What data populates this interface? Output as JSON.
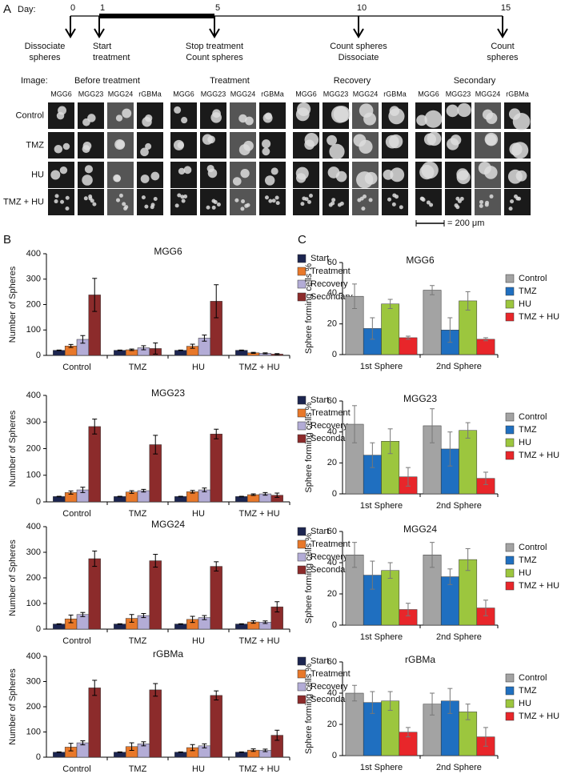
{
  "panel_a": {
    "label": "A",
    "timeline": {
      "day_label": "Day:",
      "days": [
        0,
        1,
        5,
        10,
        15
      ],
      "events": [
        [
          "Dissociate",
          "spheres"
        ],
        [
          "Start",
          "treatment"
        ],
        [
          "Stop treatment",
          "Count spheres"
        ],
        [
          "Count spheres",
          "Dissociate"
        ],
        [
          "Count",
          "spheres"
        ]
      ]
    },
    "image_grid": {
      "label": "Image:",
      "groups": [
        {
          "name": "Before treatment",
          "columns": [
            "MGG6",
            "MGG23",
            "MGG24",
            "rGBMa"
          ]
        },
        {
          "name": "Treatment",
          "columns": [
            "MGG6",
            "MGG23",
            "MGG24",
            "rGBMa"
          ]
        },
        {
          "name": "Recovery",
          "columns": [
            "MGG6",
            "MGG23",
            "MGG24",
            "rGBMa"
          ]
        },
        {
          "name": "Secondary",
          "columns": [
            "MGG6",
            "MGG23",
            "MGG24",
            "rGBMa"
          ]
        }
      ],
      "rows": [
        "Control",
        "TMZ",
        "HU",
        "TMZ + HU"
      ],
      "scale_bar": "= 200 μm"
    }
  },
  "panel_b": {
    "label": "B"
  },
  "panel_c": {
    "label": "C"
  },
  "chart_data": [
    {
      "type": "bar",
      "title": "MGG6",
      "y_label": "Number of Spheres",
      "categories": [
        "Control",
        "TMZ",
        "HU",
        "TMZ + HU"
      ],
      "ylim": [
        0,
        400
      ],
      "yticks": [
        0,
        100,
        200,
        300,
        400
      ],
      "legend": "right",
      "series": [
        {
          "name": "Start",
          "color": "#1c2550",
          "values": [
            20,
            20,
            20,
            20
          ],
          "errors": [
            1,
            1,
            1,
            1
          ]
        },
        {
          "name": "Treatment",
          "color": "#e8782a",
          "values": [
            37,
            22,
            36,
            10
          ],
          "errors": [
            6,
            3,
            8,
            2
          ]
        },
        {
          "name": "Recovery",
          "color": "#b3acd6",
          "values": [
            63,
            30,
            68,
            8
          ],
          "errors": [
            15,
            8,
            12,
            2
          ]
        },
        {
          "name": "Secondary",
          "color": "#8c2b2b",
          "values": [
            238,
            27,
            213,
            5
          ],
          "errors": [
            65,
            22,
            65,
            2
          ]
        }
      ]
    },
    {
      "type": "bar",
      "title": "MGG23",
      "y_label": "Number of Spheres",
      "categories": [
        "Control",
        "TMZ",
        "HU",
        "TMZ + HU"
      ],
      "ylim": [
        0,
        400
      ],
      "yticks": [
        0,
        100,
        200,
        300,
        400
      ],
      "legend": "right",
      "series": [
        {
          "name": "Start",
          "color": "#1c2550",
          "values": [
            20,
            20,
            20,
            20
          ],
          "errors": [
            1,
            1,
            1,
            1
          ]
        },
        {
          "name": "Treatment",
          "color": "#e8782a",
          "values": [
            35,
            37,
            38,
            27
          ],
          "errors": [
            6,
            5,
            5,
            3
          ]
        },
        {
          "name": "Recovery",
          "color": "#b3acd6",
          "values": [
            45,
            42,
            45,
            30
          ],
          "errors": [
            10,
            5,
            7,
            5
          ]
        },
        {
          "name": "Secondary",
          "color": "#8c2b2b",
          "values": [
            283,
            215,
            255,
            25
          ],
          "errors": [
            28,
            35,
            18,
            8
          ]
        }
      ]
    },
    {
      "type": "bar",
      "title": "MGG24",
      "y_label": "Number of Spheres",
      "categories": [
        "Control",
        "TMZ",
        "HU",
        "TMZ + HU"
      ],
      "ylim": [
        0,
        400
      ],
      "yticks": [
        0,
        100,
        200,
        300,
        400
      ],
      "legend": "right",
      "series": [
        {
          "name": "Start",
          "color": "#1c2550",
          "values": [
            20,
            20,
            20,
            20
          ],
          "errors": [
            1,
            1,
            1,
            1
          ]
        },
        {
          "name": "Treatment",
          "color": "#e8782a",
          "values": [
            40,
            42,
            38,
            28
          ],
          "errors": [
            15,
            15,
            12,
            5
          ]
        },
        {
          "name": "Recovery",
          "color": "#b3acd6",
          "values": [
            57,
            53,
            45,
            27
          ],
          "errors": [
            8,
            8,
            8,
            5
          ]
        },
        {
          "name": "Secondary",
          "color": "#8c2b2b",
          "values": [
            275,
            267,
            245,
            87
          ],
          "errors": [
            30,
            25,
            18,
            20
          ]
        }
      ]
    },
    {
      "type": "bar",
      "title": "rGBMa",
      "y_label": "Number of Spheres",
      "categories": [
        "Control",
        "TMZ",
        "HU",
        "TMZ + HU"
      ],
      "ylim": [
        0,
        400
      ],
      "yticks": [
        0,
        100,
        200,
        300,
        400
      ],
      "legend": "right",
      "series": [
        {
          "name": "Start",
          "color": "#1c2550",
          "values": [
            20,
            20,
            20,
            20
          ],
          "errors": [
            1,
            1,
            1,
            1
          ]
        },
        {
          "name": "Treatment",
          "color": "#e8782a",
          "values": [
            40,
            42,
            38,
            28
          ],
          "errors": [
            15,
            15,
            12,
            5
          ]
        },
        {
          "name": "Recovery",
          "color": "#b3acd6",
          "values": [
            57,
            53,
            45,
            27
          ],
          "errors": [
            8,
            8,
            8,
            5
          ]
        },
        {
          "name": "Secondary",
          "color": "#8c2b2b",
          "values": [
            275,
            267,
            245,
            87
          ],
          "errors": [
            30,
            25,
            18,
            20
          ]
        }
      ]
    },
    {
      "type": "bar",
      "title": "MGG6",
      "y_label": "Sphere forming cells %",
      "categories": [
        "1st Sphere",
        "2nd Sphere"
      ],
      "ylim": [
        0,
        60
      ],
      "yticks": [
        0,
        20,
        40,
        60
      ],
      "legend": "right",
      "series": [
        {
          "name": "Control",
          "color": "#a3a3a3",
          "values": [
            38,
            42
          ],
          "errors": [
            8,
            3
          ]
        },
        {
          "name": "TMZ",
          "color": "#1f6fc0",
          "values": [
            17,
            16
          ],
          "errors": [
            7,
            8
          ]
        },
        {
          "name": "HU",
          "color": "#9cc63e",
          "values": [
            33,
            35
          ],
          "errors": [
            3,
            6
          ]
        },
        {
          "name": "TMZ + HU",
          "color": "#e8262a",
          "values": [
            11,
            10
          ],
          "errors": [
            1,
            1
          ]
        }
      ]
    },
    {
      "type": "bar",
      "title": "MGG23",
      "y_label": "Sphere forming cells %",
      "categories": [
        "1st Sphere",
        "2nd Sphere"
      ],
      "ylim": [
        0,
        60
      ],
      "yticks": [
        0,
        20,
        40,
        60
      ],
      "legend": "right",
      "series": [
        {
          "name": "Control",
          "color": "#a3a3a3",
          "values": [
            45,
            44
          ],
          "errors": [
            12,
            11
          ]
        },
        {
          "name": "TMZ",
          "color": "#1f6fc0",
          "values": [
            25,
            29
          ],
          "errors": [
            8,
            11
          ]
        },
        {
          "name": "HU",
          "color": "#9cc63e",
          "values": [
            34,
            41
          ],
          "errors": [
            8,
            5
          ]
        },
        {
          "name": "TMZ + HU",
          "color": "#e8262a",
          "values": [
            11,
            10
          ],
          "errors": [
            6,
            4
          ]
        }
      ]
    },
    {
      "type": "bar",
      "title": "MGG24",
      "y_label": "Sphere forming cells %",
      "categories": [
        "1st Sphere",
        "2nd Sphere"
      ],
      "ylim": [
        0,
        60
      ],
      "yticks": [
        0,
        20,
        40,
        60
      ],
      "legend": "right",
      "series": [
        {
          "name": "Control",
          "color": "#a3a3a3",
          "values": [
            45,
            45
          ],
          "errors": [
            8,
            8
          ]
        },
        {
          "name": "TMZ",
          "color": "#1f6fc0",
          "values": [
            32,
            31
          ],
          "errors": [
            9,
            5
          ]
        },
        {
          "name": "HU",
          "color": "#9cc63e",
          "values": [
            35,
            42
          ],
          "errors": [
            5,
            7
          ]
        },
        {
          "name": "TMZ + HU",
          "color": "#e8262a",
          "values": [
            10,
            11
          ],
          "errors": [
            4,
            5
          ]
        }
      ]
    },
    {
      "type": "bar",
      "title": "rGBMa",
      "y_label": "Sphere forming cells %",
      "categories": [
        "1st Sphere",
        "2nd Sphere"
      ],
      "ylim": [
        0,
        60
      ],
      "yticks": [
        0,
        20,
        40,
        60
      ],
      "legend": "right",
      "series": [
        {
          "name": "Control",
          "color": "#a3a3a3",
          "values": [
            40,
            33
          ],
          "errors": [
            5,
            7
          ]
        },
        {
          "name": "TMZ",
          "color": "#1f6fc0",
          "values": [
            34,
            35
          ],
          "errors": [
            7,
            8
          ]
        },
        {
          "name": "HU",
          "color": "#9cc63e",
          "values": [
            35,
            28
          ],
          "errors": [
            6,
            5
          ]
        },
        {
          "name": "TMZ + HU",
          "color": "#e8262a",
          "values": [
            15,
            12
          ],
          "errors": [
            3,
            6
          ]
        }
      ]
    }
  ]
}
